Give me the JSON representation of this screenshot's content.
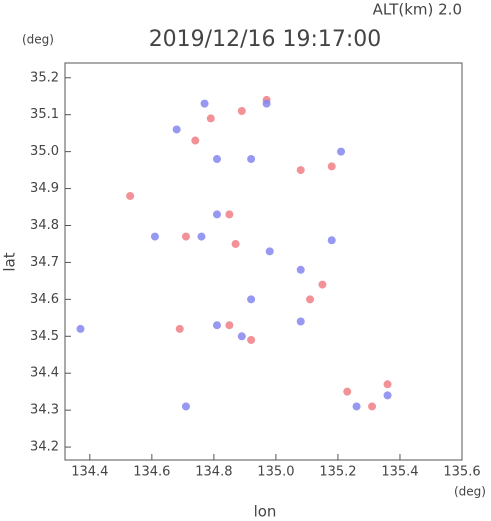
{
  "chart_data": {
    "type": "scatter",
    "title": "2019/12/16 19:17:00",
    "subtitle": "ALT(km) 2.0",
    "y_unit": "(deg)",
    "x_unit": "(deg)",
    "xlabel": "lon",
    "ylabel": "lat",
    "xlim": [
      134.32,
      135.6
    ],
    "ylim": [
      34.165,
      35.24
    ],
    "xticks": [
      134.4,
      134.6,
      134.8,
      {
        "value": 135,
        "label": "135.0"
      },
      135.2,
      135.4,
      135.6
    ],
    "yticks": [
      34.2,
      34.3,
      34.4,
      34.5,
      34.6,
      34.7,
      34.8,
      34.9,
      {
        "value": 35,
        "label": "35.0"
      },
      35.1,
      35.2
    ],
    "series": [
      {
        "color": "#f07f86",
        "x": [
          134.79,
          134.89,
          134.97,
          134.74,
          135.08,
          135.18,
          134.71,
          134.85,
          134.87,
          135.15,
          135.11,
          134.69,
          134.85,
          134.92,
          135.23,
          135.31,
          135.36,
          134.53
        ],
        "values": [
          35.09,
          35.11,
          35.14,
          35.03,
          34.95,
          34.96,
          34.77,
          34.83,
          34.75,
          34.64,
          34.6,
          34.52,
          34.53,
          34.49,
          34.35,
          34.31,
          34.37,
          34.88
        ]
      },
      {
        "color": "#8486ee",
        "x": [
          134.68,
          134.77,
          134.97,
          134.81,
          134.92,
          135.21,
          134.61,
          134.76,
          134.81,
          134.98,
          135.08,
          135.18,
          134.92,
          134.89,
          134.81,
          135.08,
          134.71,
          134.37,
          135.26,
          135.36
        ],
        "values": [
          35.06,
          35.13,
          35.13,
          34.98,
          34.98,
          35.0,
          34.77,
          34.77,
          34.83,
          34.73,
          34.68,
          34.76,
          34.6,
          34.5,
          34.53,
          34.54,
          34.31,
          34.52,
          34.31,
          34.34
        ]
      }
    ]
  }
}
